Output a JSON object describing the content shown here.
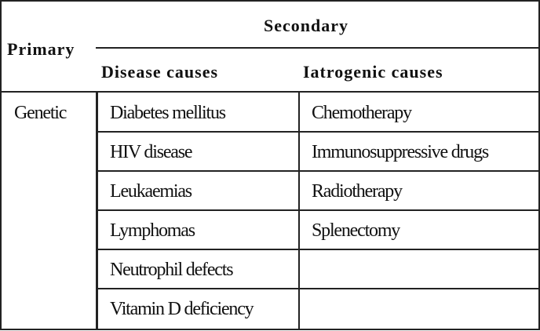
{
  "header": {
    "primary": "Primary",
    "secondary": "Secondary",
    "disease_causes": "Disease causes",
    "iatrogenic_causes": "Iatrogenic causes"
  },
  "table": {
    "primary": [
      "Genetic"
    ],
    "disease": [
      "Diabetes mellitus",
      "HIV disease",
      "Leukaemias",
      "Lymphomas",
      "Neutrophil defects",
      "Vitamin D deficiency"
    ],
    "iatrogenic": [
      "Chemotherapy",
      "Immunosuppressive drugs",
      "Radiotherapy",
      "Splenectomy"
    ]
  }
}
